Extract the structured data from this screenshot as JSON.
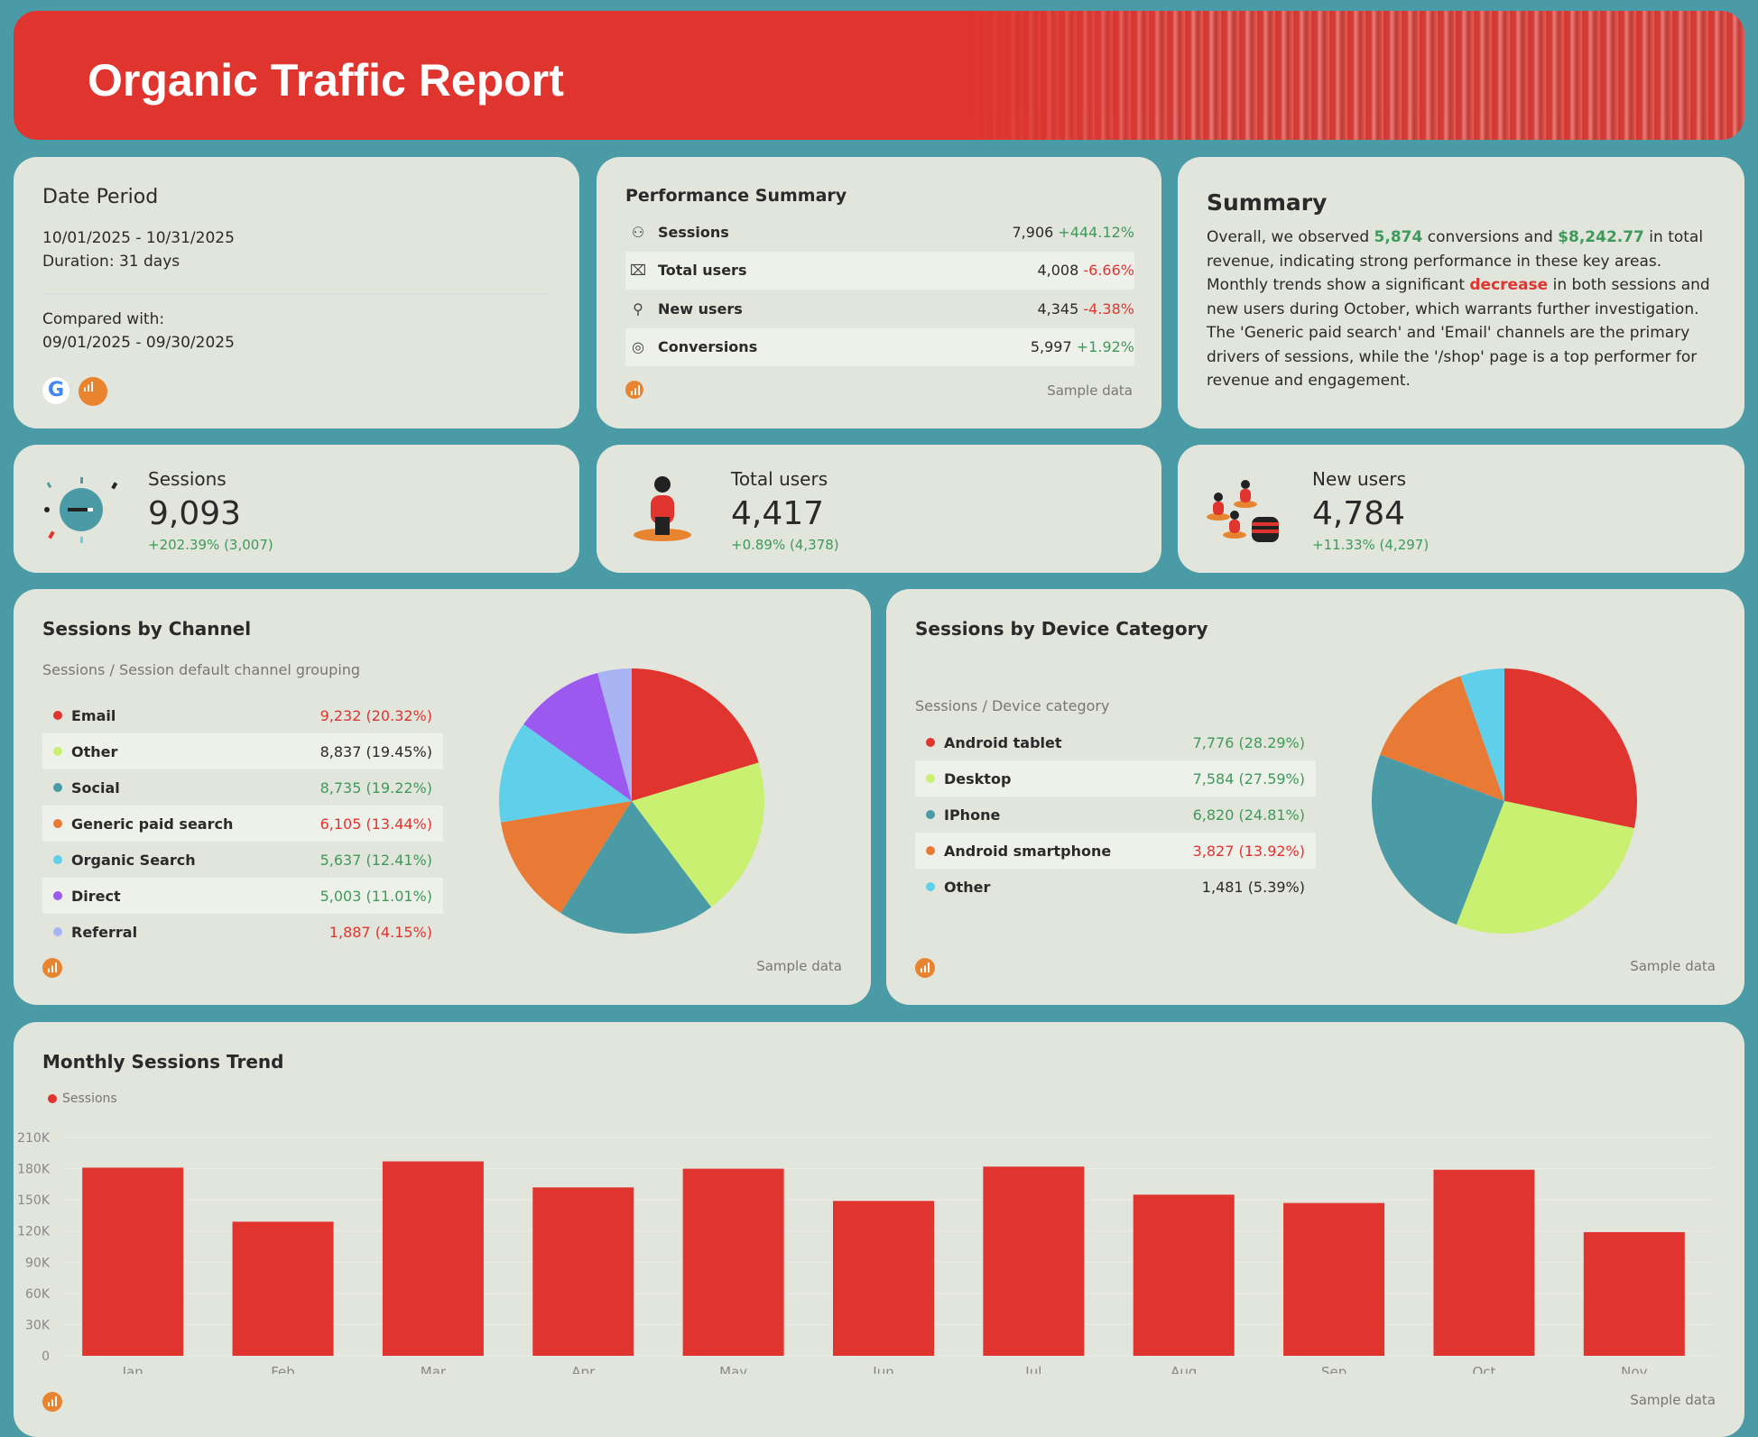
{
  "header": {
    "title": "Organic Traffic Report"
  },
  "date_period": {
    "title": "Date Period",
    "range": "10/01/2025 - 10/31/2025",
    "duration": "Duration: 31 days",
    "compared_label": "Compared with:",
    "compared_range": "09/01/2025 - 09/30/2025"
  },
  "performance": {
    "title": "Performance Summary",
    "sample": "Sample data",
    "rows": [
      {
        "icon": "users-icon",
        "label": "Sessions",
        "value": "7,906",
        "change": "+444.12%",
        "trend": "pos"
      },
      {
        "icon": "presentation-user-icon",
        "label": "Total users",
        "value": "4,008",
        "change": "-6.66%",
        "trend": "neg"
      },
      {
        "icon": "new-user-icon",
        "label": "New users",
        "value": "4,345",
        "change": "-4.38%",
        "trend": "neg"
      },
      {
        "icon": "target-icon",
        "label": "Conversions",
        "value": "5,997",
        "change": "+1.92%",
        "trend": "pos"
      }
    ]
  },
  "summary": {
    "title": "Summary",
    "p1": "Overall, we observed ",
    "conv": "5,874",
    "p2": " conversions and ",
    "rev": "$8,242.77",
    "p3": " in total revenue, indicating strong performance in these key areas. Monthly trends show a significant ",
    "dec": "decrease",
    "p4": " in both sessions and new users during October, which warrants further investigation. The 'Generic paid search' and 'Email' channels are the primary drivers of sessions, while the '/shop' page is a top performer for revenue and engagement."
  },
  "kpis": [
    {
      "label": "Sessions",
      "value": "9,093",
      "delta": "+202.39% (3,007)"
    },
    {
      "label": "Total users",
      "value": "4,417",
      "delta": "+0.89% (4,378)"
    },
    {
      "label": "New users",
      "value": "4,784",
      "delta": "+11.33% (4,297)"
    }
  ],
  "colors": {
    "accent": "#e0352f",
    "positive": "#3e9a5a",
    "negative": "#e0352f",
    "background": "#4a9ba6"
  },
  "chart_data": [
    {
      "type": "pie",
      "title": "Sessions by Channel",
      "subtitle": "Sessions / Session default channel grouping",
      "sample": "Sample data",
      "categories": [
        "Email",
        "Other",
        "Social",
        "Generic paid search",
        "Organic Search",
        "Direct",
        "Referral"
      ],
      "values": [
        9232,
        8837,
        8735,
        6105,
        5637,
        5003,
        1887
      ],
      "labels": [
        "9,232 (20.32%)",
        "8,837 (19.45%)",
        "8,735 (19.22%)",
        "6,105 (13.44%)",
        "5,637 (12.41%)",
        "5,003 (11.01%)",
        "1,887 (4.15%)"
      ],
      "label_colors": [
        "neg",
        "plain",
        "pos",
        "neg",
        "pos",
        "pos",
        "neg"
      ],
      "colors": [
        "#e0352f",
        "#c9f070",
        "#4a9ba6",
        "#e87a35",
        "#5fcfea",
        "#9b59f0",
        "#a9b4f5"
      ]
    },
    {
      "type": "pie",
      "title": "Sessions by Device Category",
      "subtitle": "Sessions / Device category",
      "sample": "Sample data",
      "categories": [
        "Android tablet",
        "Desktop",
        "IPhone",
        "Android smartphone",
        "Other"
      ],
      "values": [
        7776,
        7584,
        6820,
        3827,
        1481
      ],
      "labels": [
        "7,776 (28.29%)",
        "7,584 (27.59%)",
        "6,820 (24.81%)",
        "3,827 (13.92%)",
        "1,481 (5.39%)"
      ],
      "label_colors": [
        "pos",
        "pos",
        "pos",
        "neg",
        "plain"
      ],
      "colors": [
        "#e0352f",
        "#c9f070",
        "#4a9ba6",
        "#e87a35",
        "#5fcfea"
      ]
    },
    {
      "type": "bar",
      "title": "Monthly Sessions Trend",
      "legend": "Sessions",
      "sample": "Sample data",
      "color": "#e0352f",
      "categories": [
        "Jan",
        "Feb",
        "Mar",
        "Apr",
        "May",
        "Jun",
        "Jul",
        "Aug",
        "Sep",
        "Oct",
        "Nov"
      ],
      "values": [
        181000,
        129000,
        187000,
        162000,
        180000,
        149000,
        182000,
        155000,
        147000,
        179000,
        119000
      ],
      "ylim": [
        0,
        210000
      ],
      "yticks": [
        "0",
        "30K",
        "60K",
        "90K",
        "120K",
        "150K",
        "180K",
        "210K"
      ],
      "grid": true,
      "legend_position": "top-left"
    }
  ]
}
